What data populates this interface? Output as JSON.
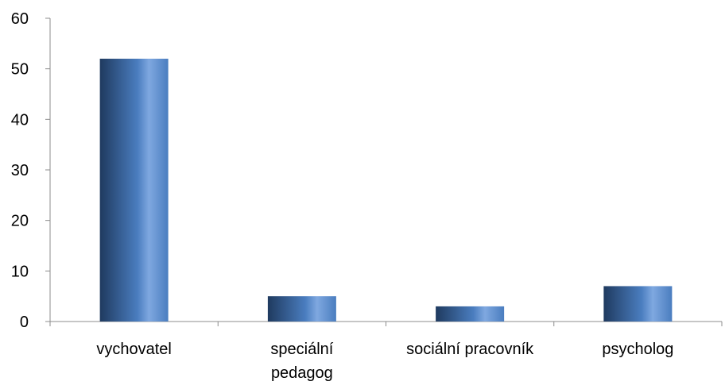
{
  "chart_data": {
    "type": "bar",
    "categories": [
      [
        "vychovatel"
      ],
      [
        "speciální",
        "pedagog"
      ],
      [
        "sociální pracovník"
      ],
      [
        "psycholog"
      ]
    ],
    "values": [
      52,
      5,
      3,
      7
    ],
    "title": "",
    "xlabel": "",
    "ylabel": "",
    "ylim": [
      0,
      60
    ],
    "yticks": [
      0,
      10,
      20,
      30,
      40,
      50,
      60
    ],
    "grid": false,
    "legend": "none",
    "colors": {
      "bar_dark": "#1f3a5f",
      "bar_mid": "#4a7dbf",
      "bar_light": "#7fa8e0",
      "axis": "#8c8c8c",
      "text": "#000000"
    }
  }
}
